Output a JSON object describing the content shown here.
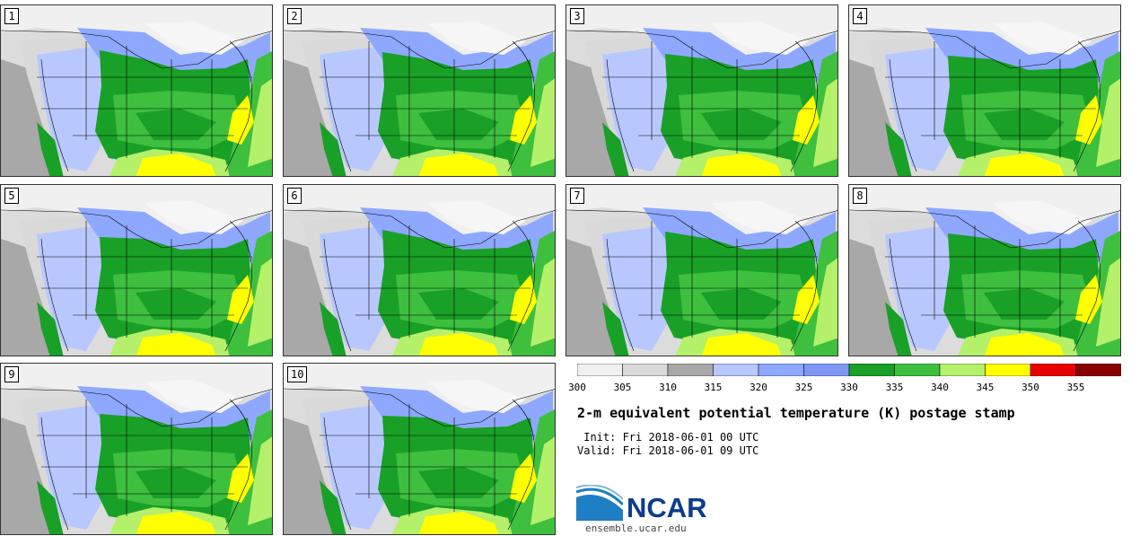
{
  "panels": [
    {
      "label": "1"
    },
    {
      "label": "2"
    },
    {
      "label": "3"
    },
    {
      "label": "4"
    },
    {
      "label": "5"
    },
    {
      "label": "6"
    },
    {
      "label": "7"
    },
    {
      "label": "8"
    },
    {
      "label": "9"
    },
    {
      "label": "10"
    }
  ],
  "colorbar": {
    "ticks": [
      "300",
      "305",
      "310",
      "315",
      "320",
      "325",
      "330",
      "335",
      "340",
      "345",
      "350",
      "355"
    ],
    "colors": [
      "#f0f0f0",
      "#d9d9d9",
      "#a8a8a8",
      "#b8c8ff",
      "#8ea8ff",
      "#7f96f5",
      "#19a026",
      "#3ebf3e",
      "#b5f06a",
      "#ffff00",
      "#e80000",
      "#8a0000"
    ]
  },
  "title": "2-m equivalent potential temperature (K) postage stamp",
  "init": " Init: Fri 2018-06-01 00 UTC",
  "valid": "Valid: Fri 2018-06-01 09 UTC",
  "logo": {
    "text": "NCAR",
    "url": "ensemble.ucar.edu"
  }
}
